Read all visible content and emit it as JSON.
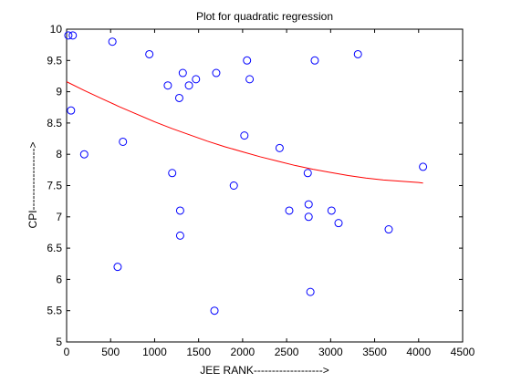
{
  "chart_data": {
    "type": "scatter",
    "title": "Plot for quadratic regression",
    "xlabel": "JEE RANK------------------->",
    "ylabel": "CPI----------------->",
    "xlim": [
      0,
      4500
    ],
    "ylim": [
      5,
      10
    ],
    "grid": false,
    "xticks": [
      "0",
      "500",
      "1000",
      "1500",
      "2000",
      "2500",
      "3000",
      "3500",
      "4000",
      "4500"
    ],
    "yticks": [
      "5",
      "5.5",
      "6",
      "6.5",
      "7",
      "7.5",
      "8",
      "8.5",
      "9",
      "9.5",
      "10"
    ],
    "xtick_values": [
      0,
      500,
      1000,
      1500,
      2000,
      2500,
      3000,
      3500,
      4000,
      4500
    ],
    "ytick_values": [
      5,
      5.5,
      6,
      6.5,
      7,
      7.5,
      8,
      8.5,
      9,
      9.5,
      10
    ],
    "colors": {
      "points": "#0000ff",
      "fit": "#ff0000",
      "axes": "#000000"
    },
    "series": [
      {
        "type": "scatter",
        "marker": "circle-open",
        "x": [
          20,
          70,
          50,
          200,
          520,
          580,
          640,
          940,
          1150,
          1200,
          1280,
          1290,
          1290,
          1320,
          1390,
          1470,
          1680,
          1700,
          1900,
          2020,
          2050,
          2080,
          2420,
          2530,
          2740,
          2750,
          2750,
          2770,
          2820,
          3010,
          3090,
          3310,
          3660,
          4050
        ],
        "y": [
          9.9,
          9.9,
          8.7,
          8.0,
          9.8,
          6.2,
          8.2,
          9.6,
          9.1,
          7.7,
          8.9,
          7.1,
          6.7,
          9.3,
          9.1,
          9.2,
          5.5,
          9.3,
          7.5,
          8.3,
          9.5,
          9.2,
          8.1,
          7.1,
          7.7,
          7.2,
          7.0,
          5.8,
          9.5,
          7.1,
          6.9,
          9.6,
          6.8,
          7.8
        ]
      },
      {
        "type": "line",
        "x": [
          0,
          200,
          400,
          600,
          800,
          1000,
          1200,
          1400,
          1600,
          1800,
          2000,
          2200,
          2400,
          2600,
          2800,
          3000,
          3200,
          3400,
          3600,
          3800,
          4000,
          4050
        ],
        "y": [
          9.16,
          9.02,
          8.89,
          8.76,
          8.64,
          8.52,
          8.41,
          8.31,
          8.21,
          8.12,
          8.04,
          7.96,
          7.89,
          7.82,
          7.76,
          7.71,
          7.66,
          7.62,
          7.59,
          7.57,
          7.55,
          7.54
        ]
      }
    ]
  }
}
